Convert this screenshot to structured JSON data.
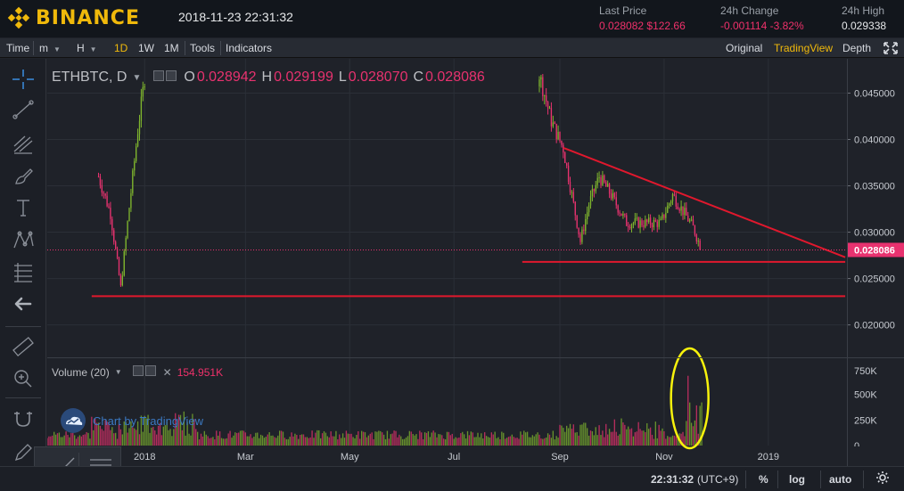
{
  "header": {
    "brand": "BINANCE",
    "datetime": "2018-11-23 22:31:32",
    "last_price_label": "Last Price",
    "last_price_btc": "0.028082",
    "last_price_usd": "$122.66",
    "change_label": "24h Change",
    "change_abs": "-0.001114",
    "change_pct": "-3.82%",
    "high_label": "24h High",
    "high_value": "0.029338",
    "brand_color": "#f0b90b"
  },
  "toolbar": {
    "time": "Time",
    "m": "m",
    "h": "H",
    "d1": "1D",
    "w1": "1W",
    "mo1": "1M",
    "tools": "Tools",
    "indicators": "Indicators",
    "original": "Original",
    "tradingview": "TradingView",
    "depth": "Depth",
    "active_interval": "1D",
    "active_view": "TradingView"
  },
  "legend": {
    "symbol": "ETHBTC, D",
    "o_label": "O",
    "o_value": "0.028942",
    "h_label": "H",
    "h_value": "0.029199",
    "l_label": "L",
    "l_value": "0.028070",
    "c_label": "C",
    "c_value": "0.028086"
  },
  "volume_legend": {
    "label": "Volume (20)",
    "value": "154.951K"
  },
  "watermark": "Chart by TradingView",
  "price_axis": {
    "ticks": [
      "0.045000",
      "0.040000",
      "0.035000",
      "0.030000",
      "0.025000",
      "0.020000"
    ],
    "current": "0.028086"
  },
  "volume_axis": {
    "ticks": [
      "750K",
      "500K",
      "250K",
      "0"
    ]
  },
  "time_axis": {
    "ticks": [
      "2018",
      "Mar",
      "May",
      "Jul",
      "Sep",
      "Nov",
      "2019"
    ]
  },
  "status": {
    "clock": "22:31:32",
    "tz": "(UTC+9)",
    "pct": "%",
    "log": "log",
    "auto": "auto"
  },
  "chart_data": {
    "type": "candlestick",
    "symbol": "ETHBTC",
    "interval": "D",
    "x_ticks": [
      "2018",
      "Mar",
      "May",
      "Jul",
      "Sep",
      "Nov",
      "2019"
    ],
    "y_range": [
      0.0165,
      0.0487
    ],
    "y_ticks": [
      0.045,
      0.04,
      0.035,
      0.03,
      0.025,
      0.02
    ],
    "volume_range": [
      0,
      750000
    ],
    "volume_ticks": [
      750000,
      500000,
      250000,
      0
    ],
    "last_close": 0.028086,
    "ohlc_last": {
      "open": 0.028942,
      "high": 0.029199,
      "low": 0.02807,
      "close": 0.028086
    },
    "visible_price_path": [
      {
        "date": "2017-12-05",
        "price": 0.036
      },
      {
        "date": "2017-12-12",
        "price": 0.032
      },
      {
        "date": "2017-12-18",
        "price": 0.024
      },
      {
        "date": "2017-12-22",
        "price": 0.031
      },
      {
        "date": "2017-12-28",
        "price": 0.041
      },
      {
        "date": "2018-01-02",
        "price": 0.048
      },
      {
        "date": "2018-08-20",
        "price": 0.047
      },
      {
        "date": "2018-08-27",
        "price": 0.042
      },
      {
        "date": "2018-09-03",
        "price": 0.039
      },
      {
        "date": "2018-09-08",
        "price": 0.034
      },
      {
        "date": "2018-09-13",
        "price": 0.029
      },
      {
        "date": "2018-09-18",
        "price": 0.033
      },
      {
        "date": "2018-09-24",
        "price": 0.036
      },
      {
        "date": "2018-10-01",
        "price": 0.034
      },
      {
        "date": "2018-10-10",
        "price": 0.031
      },
      {
        "date": "2018-10-20",
        "price": 0.031
      },
      {
        "date": "2018-10-30",
        "price": 0.031
      },
      {
        "date": "2018-11-06",
        "price": 0.034
      },
      {
        "date": "2018-11-13",
        "price": 0.032
      },
      {
        "date": "2018-11-18",
        "price": 0.0305
      },
      {
        "date": "2018-11-23",
        "price": 0.028086
      }
    ],
    "trendlines": [
      {
        "name": "descending resistance",
        "from": {
          "date": "2018-09-03",
          "price": 0.0391
        },
        "to": {
          "date": "2019-02-15",
          "price": 0.0273
        }
      },
      {
        "name": "horizontal support 1",
        "from": {
          "date": "2018-08-10",
          "price": 0.0268
        },
        "to": {
          "date": "2019-02-15",
          "price": 0.0268
        }
      },
      {
        "name": "horizontal support 2",
        "from": {
          "date": "2017-12-01",
          "price": 0.0231
        },
        "to": {
          "date": "2019-02-15",
          "price": 0.0231
        }
      }
    ],
    "annotations": [
      {
        "type": "ellipse",
        "target": "volume spike mid-November 2018",
        "color": "#f7f20c"
      }
    ],
    "grid": true,
    "colors": {
      "up": "#7fb52d",
      "down": "#e8326f",
      "trendline": "#e0182d"
    }
  }
}
